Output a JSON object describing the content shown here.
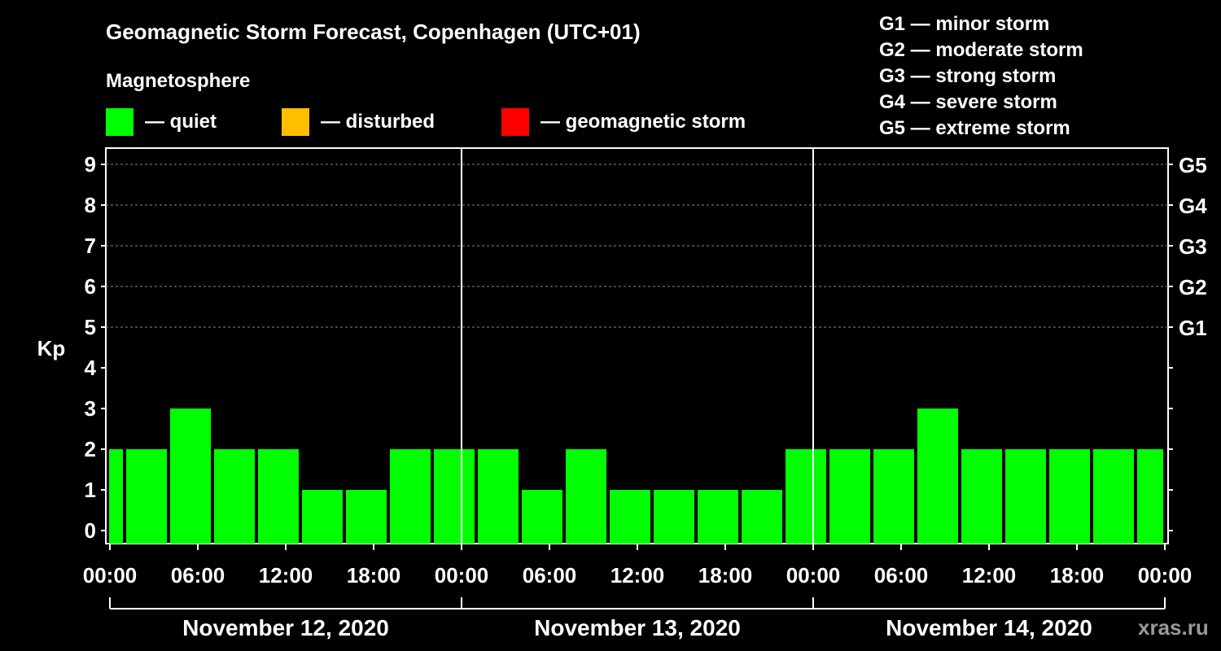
{
  "header": {
    "title": "Geomagnetic Storm Forecast, Copenhagen (UTC+01)",
    "subtitle": "Magnetosphere"
  },
  "legend": [
    {
      "label": "— quiet",
      "color": "#00ff00"
    },
    {
      "label": "— disturbed",
      "color": "#ffbf00"
    },
    {
      "label": "— geomagnetic storm",
      "color": "#ff0000"
    }
  ],
  "storm_scale": [
    "G1 — minor storm",
    "G2 — moderate storm",
    "G3 — strong storm",
    "G4 — severe storm",
    "G5 — extreme storm"
  ],
  "watermark": "xras.ru",
  "chart_data": {
    "type": "bar",
    "title": "Geomagnetic Storm Forecast, Copenhagen (UTC+01)",
    "ylabel": "Kp",
    "ylim": [
      0,
      9
    ],
    "y_ticks": [
      "0",
      "1",
      "2",
      "3",
      "4",
      "5",
      "6",
      "7",
      "8",
      "9"
    ],
    "right_axis_labels": [
      {
        "kp": 5,
        "label": "G1"
      },
      {
        "kp": 6,
        "label": "G2"
      },
      {
        "kp": 7,
        "label": "G3"
      },
      {
        "kp": 8,
        "label": "G4"
      },
      {
        "kp": 9,
        "label": "G5"
      }
    ],
    "grid": "dashed horizontal at Kp 5-9",
    "x_tick_labels": [
      "00:00",
      "06:00",
      "12:00",
      "18:00",
      "00:00",
      "06:00",
      "12:00",
      "18:00",
      "00:00",
      "06:00",
      "12:00",
      "18:00",
      "00:00"
    ],
    "days": [
      "November 12, 2020",
      "November 13, 2020",
      "November 14, 2020"
    ],
    "interval_hours": 3,
    "start_hour": -2,
    "values": [
      2,
      2,
      3,
      2,
      2,
      1,
      1,
      2,
      2,
      2,
      1,
      2,
      1,
      1,
      1,
      1,
      2,
      2,
      2,
      3,
      2,
      2,
      2,
      2,
      2
    ],
    "color_quiet": "#00ff00"
  }
}
